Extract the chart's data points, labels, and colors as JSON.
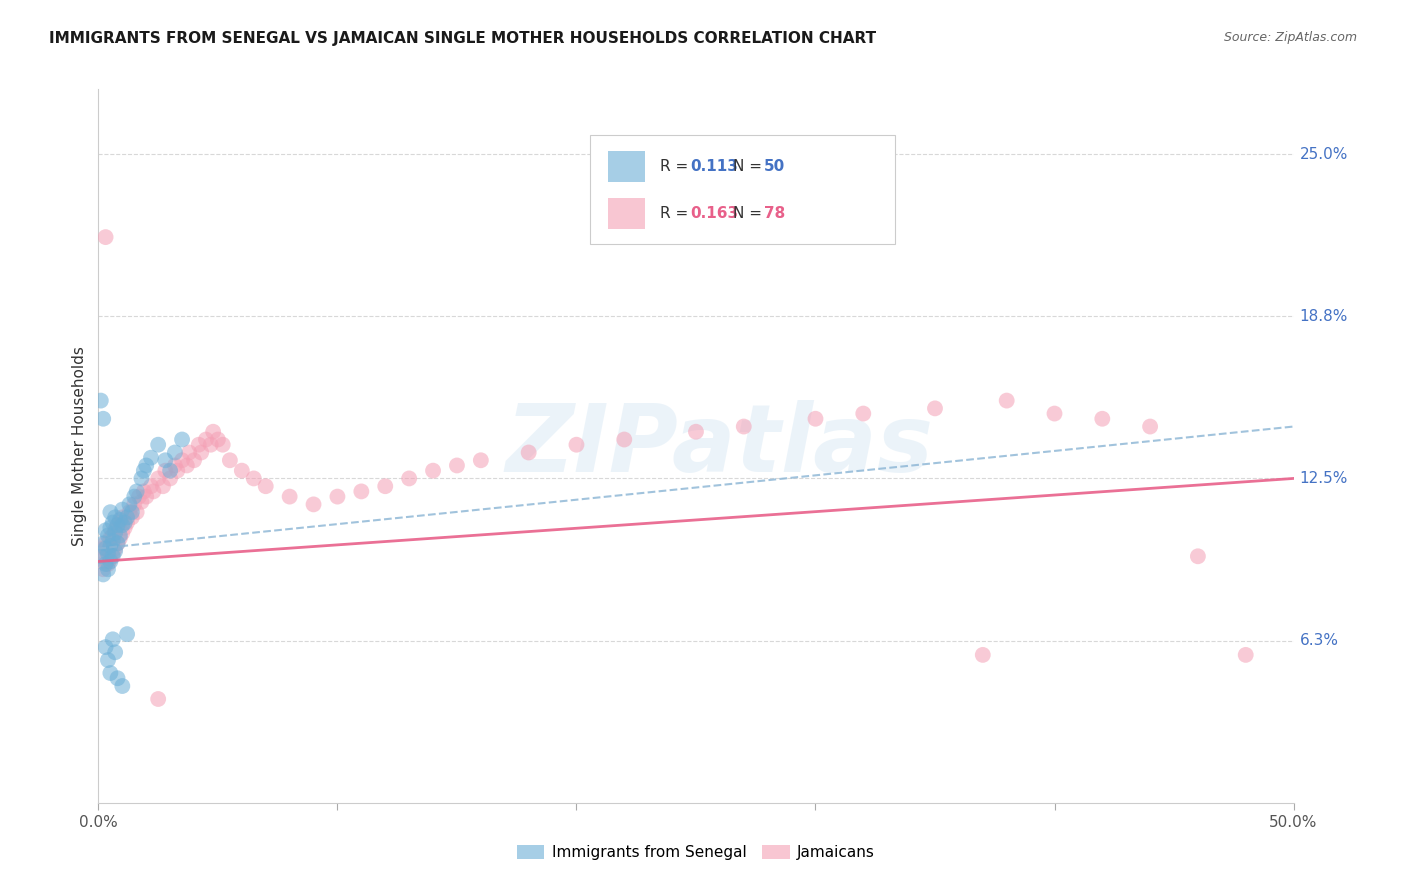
{
  "title": "IMMIGRANTS FROM SENEGAL VS JAMAICAN SINGLE MOTHER HOUSEHOLDS CORRELATION CHART",
  "source": "Source: ZipAtlas.com",
  "ylabel": "Single Mother Households",
  "xlim": [
    0.0,
    0.5
  ],
  "ylim": [
    0.0,
    0.275
  ],
  "ytick_positions": [
    0.0625,
    0.125,
    0.1875,
    0.25
  ],
  "ytick_labels": [
    "6.3%",
    "12.5%",
    "18.8%",
    "25.0%"
  ],
  "blue_color": "#6baed6",
  "pink_color": "#f4a0b5",
  "blue_line_color": "#8ab4d4",
  "pink_line_color": "#e8608a",
  "trendline1_x": [
    0.0,
    0.5
  ],
  "trendline1_y": [
    0.098,
    0.145
  ],
  "trendline2_x": [
    0.0,
    0.5
  ],
  "trendline2_y": [
    0.093,
    0.125
  ],
  "blue_scatter_x": [
    0.001,
    0.002,
    0.002,
    0.003,
    0.003,
    0.003,
    0.004,
    0.004,
    0.004,
    0.005,
    0.005,
    0.005,
    0.005,
    0.006,
    0.006,
    0.006,
    0.007,
    0.007,
    0.007,
    0.008,
    0.008,
    0.009,
    0.009,
    0.01,
    0.01,
    0.011,
    0.012,
    0.013,
    0.014,
    0.015,
    0.016,
    0.018,
    0.019,
    0.02,
    0.022,
    0.025,
    0.028,
    0.03,
    0.032,
    0.035,
    0.001,
    0.002,
    0.003,
    0.004,
    0.005,
    0.006,
    0.007,
    0.008,
    0.01,
    0.012
  ],
  "blue_scatter_y": [
    0.095,
    0.088,
    0.1,
    0.092,
    0.098,
    0.105,
    0.09,
    0.096,
    0.103,
    0.093,
    0.099,
    0.106,
    0.112,
    0.095,
    0.101,
    0.108,
    0.097,
    0.104,
    0.11,
    0.1,
    0.107,
    0.103,
    0.109,
    0.107,
    0.113,
    0.108,
    0.11,
    0.115,
    0.112,
    0.118,
    0.12,
    0.125,
    0.128,
    0.13,
    0.133,
    0.138,
    0.132,
    0.128,
    0.135,
    0.14,
    0.155,
    0.148,
    0.06,
    0.055,
    0.05,
    0.063,
    0.058,
    0.048,
    0.045,
    0.065
  ],
  "pink_scatter_x": [
    0.001,
    0.002,
    0.002,
    0.003,
    0.003,
    0.004,
    0.004,
    0.005,
    0.005,
    0.006,
    0.006,
    0.007,
    0.007,
    0.008,
    0.008,
    0.009,
    0.009,
    0.01,
    0.01,
    0.011,
    0.012,
    0.013,
    0.014,
    0.015,
    0.016,
    0.017,
    0.018,
    0.019,
    0.02,
    0.022,
    0.023,
    0.025,
    0.027,
    0.028,
    0.03,
    0.032,
    0.033,
    0.035,
    0.037,
    0.038,
    0.04,
    0.042,
    0.043,
    0.045,
    0.047,
    0.048,
    0.05,
    0.052,
    0.055,
    0.06,
    0.065,
    0.07,
    0.08,
    0.09,
    0.1,
    0.11,
    0.12,
    0.13,
    0.14,
    0.15,
    0.16,
    0.18,
    0.2,
    0.22,
    0.25,
    0.27,
    0.3,
    0.32,
    0.35,
    0.38,
    0.4,
    0.42,
    0.44,
    0.46,
    0.003,
    0.37,
    0.48,
    0.025
  ],
  "pink_scatter_y": [
    0.095,
    0.09,
    0.098,
    0.093,
    0.1,
    0.092,
    0.097,
    0.094,
    0.102,
    0.096,
    0.103,
    0.098,
    0.105,
    0.1,
    0.107,
    0.102,
    0.108,
    0.104,
    0.11,
    0.106,
    0.108,
    0.112,
    0.11,
    0.115,
    0.112,
    0.118,
    0.116,
    0.12,
    0.118,
    0.122,
    0.12,
    0.125,
    0.122,
    0.128,
    0.125,
    0.13,
    0.128,
    0.132,
    0.13,
    0.135,
    0.132,
    0.138,
    0.135,
    0.14,
    0.138,
    0.143,
    0.14,
    0.138,
    0.132,
    0.128,
    0.125,
    0.122,
    0.118,
    0.115,
    0.118,
    0.12,
    0.122,
    0.125,
    0.128,
    0.13,
    0.132,
    0.135,
    0.138,
    0.14,
    0.143,
    0.145,
    0.148,
    0.15,
    0.152,
    0.155,
    0.15,
    0.148,
    0.145,
    0.095,
    0.218,
    0.057,
    0.057,
    0.04
  ],
  "watermark": "ZIPatlas",
  "background_color": "#ffffff",
  "grid_color": "#d8d8d8"
}
